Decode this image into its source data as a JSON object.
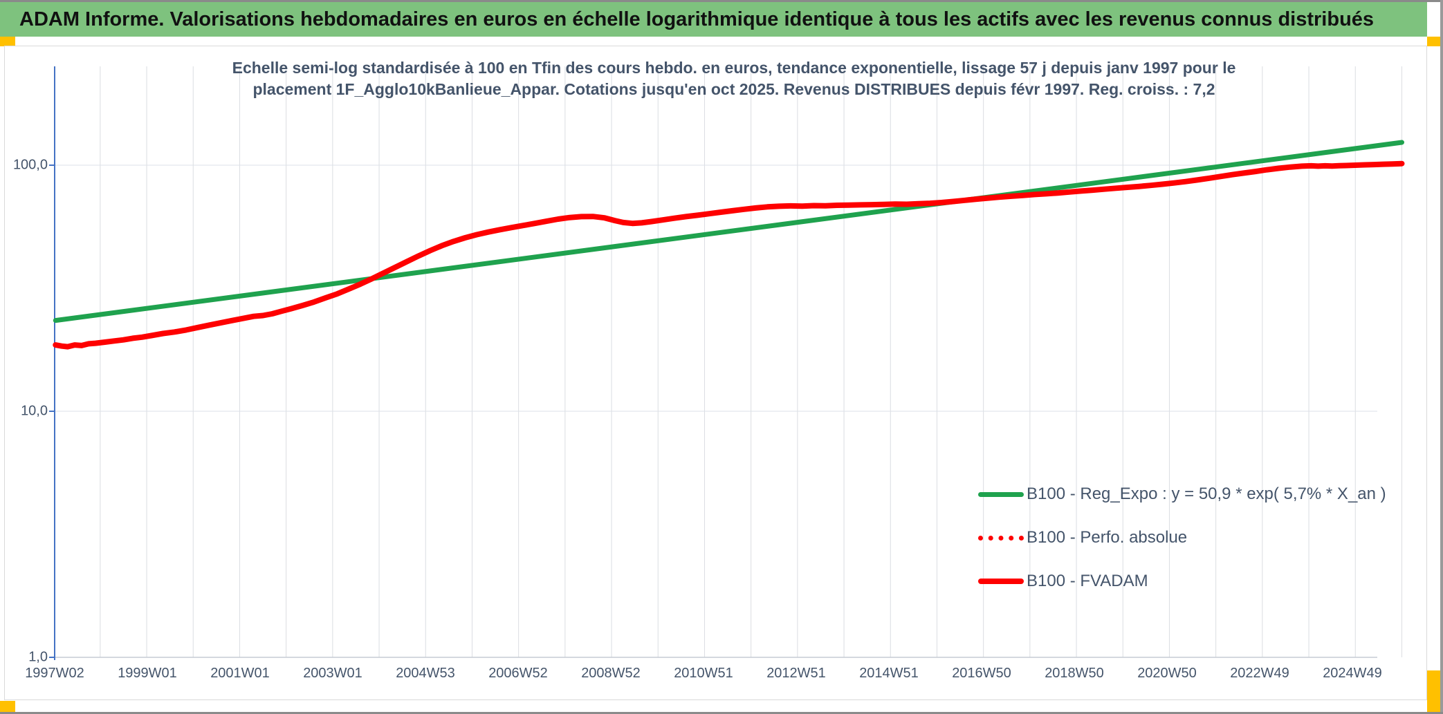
{
  "header": {
    "title": "ADAM Informe. Valorisations hebdomadaires en euros en échelle logarithmique identique à tous les actifs avec les revenus connus distribués"
  },
  "colors": {
    "header_bg": "#7ec27e",
    "corner_marker": "#ffc000",
    "chart_text": "#44546a",
    "reg_expo_line": "#1fa24e",
    "fvadam_line": "#fe0000",
    "perfo_line": "#fe0000",
    "y_axis_line": "#4472c4",
    "gridline": "#dadde2",
    "h_gridline": "#dde1e8",
    "x_axis_line": "#c5cbd3"
  },
  "chart_data": {
    "type": "line",
    "title_lines": [
      "Echelle semi-log standardisée à 100 en Tfin des cours hebdo. en euros, tendance exponentielle, lissage 57 j depuis janv 1997 pour le",
      "placement 1F_Agglo10kBanlieue_Appar. Cotations jusqu'en oct 2025. Revenus DISTRIBUES depuis févr 1997. Reg. croiss. : 7,2"
    ],
    "y_axis": {
      "scale": "log",
      "tick_labels": [
        "100,0",
        "10,0",
        "1,0"
      ],
      "tick_values": [
        100,
        10,
        1
      ],
      "range": [
        1,
        253
      ]
    },
    "x_axis": {
      "tick_labels": [
        "1997W02",
        "1999W01",
        "2001W01",
        "2003W01",
        "2004W53",
        "2006W52",
        "2008W52",
        "2010W51",
        "2012W51",
        "2014W51",
        "2016W50",
        "2018W50",
        "2020W50",
        "2022W49",
        "2024W49"
      ],
      "gridline_years_start": 1998,
      "gridline_years_end": 2026,
      "grid": "on"
    },
    "legend": {
      "position": "inside-right",
      "items": [
        {
          "label": "B100 - Reg_Expo : y = 50,9 * exp( 5,7% *  X_an )",
          "color": "#1fa24e",
          "style": "solid"
        },
        {
          "label": "B100 - Perfo. absolue",
          "color": "#fe0000",
          "style": "dotted"
        },
        {
          "label": "B100 - FVADAM",
          "color": "#fe0000",
          "style": "solid"
        }
      ]
    },
    "series": [
      {
        "name": "B100 - Reg_Expo",
        "style": "solid",
        "color": "#1fa24e",
        "width": 7,
        "points": [
          [
            1997.04,
            23.4
          ],
          [
            2026.0,
            123.8
          ]
        ]
      },
      {
        "name": "B100 - Perfo. absolue",
        "style": "dotted",
        "color": "#fe0000",
        "width": 5,
        "coincides_with": "B100 - FVADAM",
        "points": []
      },
      {
        "name": "B100 - FVADAM",
        "style": "solid",
        "color": "#fe0000",
        "width": 8,
        "points": [
          [
            1997.04,
            18.6
          ],
          [
            1997.17,
            18.4
          ],
          [
            1997.3,
            18.3
          ],
          [
            1997.45,
            18.6
          ],
          [
            1997.6,
            18.5
          ],
          [
            1997.75,
            18.8
          ],
          [
            1997.9,
            18.9
          ],
          [
            1998.1,
            19.1
          ],
          [
            1998.3,
            19.3
          ],
          [
            1998.5,
            19.5
          ],
          [
            1998.7,
            19.8
          ],
          [
            1998.9,
            20.0
          ],
          [
            1999.1,
            20.3
          ],
          [
            1999.35,
            20.7
          ],
          [
            1999.6,
            21.0
          ],
          [
            1999.85,
            21.4
          ],
          [
            2000.1,
            21.9
          ],
          [
            2000.35,
            22.4
          ],
          [
            2000.6,
            22.9
          ],
          [
            2000.85,
            23.4
          ],
          [
            2001.1,
            23.9
          ],
          [
            2001.3,
            24.3
          ],
          [
            2001.5,
            24.5
          ],
          [
            2001.7,
            24.9
          ],
          [
            2001.9,
            25.5
          ],
          [
            2002.1,
            26.1
          ],
          [
            2002.35,
            26.9
          ],
          [
            2002.6,
            27.8
          ],
          [
            2002.85,
            28.9
          ],
          [
            2003.1,
            30.0
          ],
          [
            2003.35,
            31.4
          ],
          [
            2003.6,
            32.9
          ],
          [
            2003.85,
            34.6
          ],
          [
            2004.1,
            36.5
          ],
          [
            2004.35,
            38.5
          ],
          [
            2004.6,
            40.6
          ],
          [
            2004.85,
            42.8
          ],
          [
            2005.1,
            45.0
          ],
          [
            2005.35,
            47.1
          ],
          [
            2005.6,
            49.0
          ],
          [
            2005.85,
            50.7
          ],
          [
            2006.1,
            52.2
          ],
          [
            2006.35,
            53.5
          ],
          [
            2006.6,
            54.7
          ],
          [
            2006.85,
            55.8
          ],
          [
            2007.1,
            56.9
          ],
          [
            2007.35,
            58.0
          ],
          [
            2007.6,
            59.2
          ],
          [
            2007.85,
            60.4
          ],
          [
            2008.1,
            61.3
          ],
          [
            2008.35,
            61.8
          ],
          [
            2008.6,
            61.9
          ],
          [
            2008.85,
            61.1
          ],
          [
            2009.05,
            59.7
          ],
          [
            2009.25,
            58.5
          ],
          [
            2009.45,
            58.0
          ],
          [
            2009.65,
            58.3
          ],
          [
            2009.85,
            59.0
          ],
          [
            2010.1,
            59.9
          ],
          [
            2010.35,
            60.9
          ],
          [
            2010.6,
            61.8
          ],
          [
            2010.85,
            62.6
          ],
          [
            2011.1,
            63.5
          ],
          [
            2011.35,
            64.4
          ],
          [
            2011.6,
            65.3
          ],
          [
            2011.85,
            66.2
          ],
          [
            2012.1,
            67.0
          ],
          [
            2012.35,
            67.7
          ],
          [
            2012.6,
            68.1
          ],
          [
            2012.85,
            68.3
          ],
          [
            2013.1,
            68.2
          ],
          [
            2013.35,
            68.5
          ],
          [
            2013.6,
            68.4
          ],
          [
            2013.85,
            68.7
          ],
          [
            2014.1,
            68.8
          ],
          [
            2014.35,
            69.0
          ],
          [
            2014.6,
            69.1
          ],
          [
            2014.85,
            69.3
          ],
          [
            2015.1,
            69.5
          ],
          [
            2015.35,
            69.4
          ],
          [
            2015.6,
            69.7
          ],
          [
            2015.85,
            70.0
          ],
          [
            2016.1,
            70.5
          ],
          [
            2016.35,
            71.2
          ],
          [
            2016.6,
            72.0
          ],
          [
            2016.85,
            72.8
          ],
          [
            2017.1,
            73.5
          ],
          [
            2017.35,
            74.2
          ],
          [
            2017.6,
            74.8
          ],
          [
            2017.85,
            75.4
          ],
          [
            2018.1,
            76.0
          ],
          [
            2018.35,
            76.5
          ],
          [
            2018.6,
            77.1
          ],
          [
            2018.85,
            77.8
          ],
          [
            2019.1,
            78.5
          ],
          [
            2019.35,
            79.2
          ],
          [
            2019.6,
            79.9
          ],
          [
            2019.85,
            80.6
          ],
          [
            2020.1,
            81.3
          ],
          [
            2020.35,
            82.0
          ],
          [
            2020.6,
            82.8
          ],
          [
            2020.85,
            83.7
          ],
          [
            2021.1,
            84.7
          ],
          [
            2021.35,
            85.8
          ],
          [
            2021.6,
            87.1
          ],
          [
            2021.85,
            88.5
          ],
          [
            2022.1,
            90.0
          ],
          [
            2022.35,
            91.5
          ],
          [
            2022.6,
            92.9
          ],
          [
            2022.85,
            94.3
          ],
          [
            2023.1,
            95.8
          ],
          [
            2023.35,
            97.1
          ],
          [
            2023.6,
            98.3
          ],
          [
            2023.85,
            99.1
          ],
          [
            2024.05,
            99.4
          ],
          [
            2024.2,
            99.1
          ],
          [
            2024.35,
            99.4
          ],
          [
            2024.5,
            99.2
          ],
          [
            2024.65,
            99.5
          ],
          [
            2024.8,
            99.7
          ],
          [
            2025.0,
            100.0
          ],
          [
            2025.2,
            100.3
          ],
          [
            2025.4,
            100.6
          ],
          [
            2025.6,
            100.9
          ],
          [
            2025.8,
            101.2
          ],
          [
            2026.0,
            101.5
          ]
        ]
      }
    ]
  }
}
